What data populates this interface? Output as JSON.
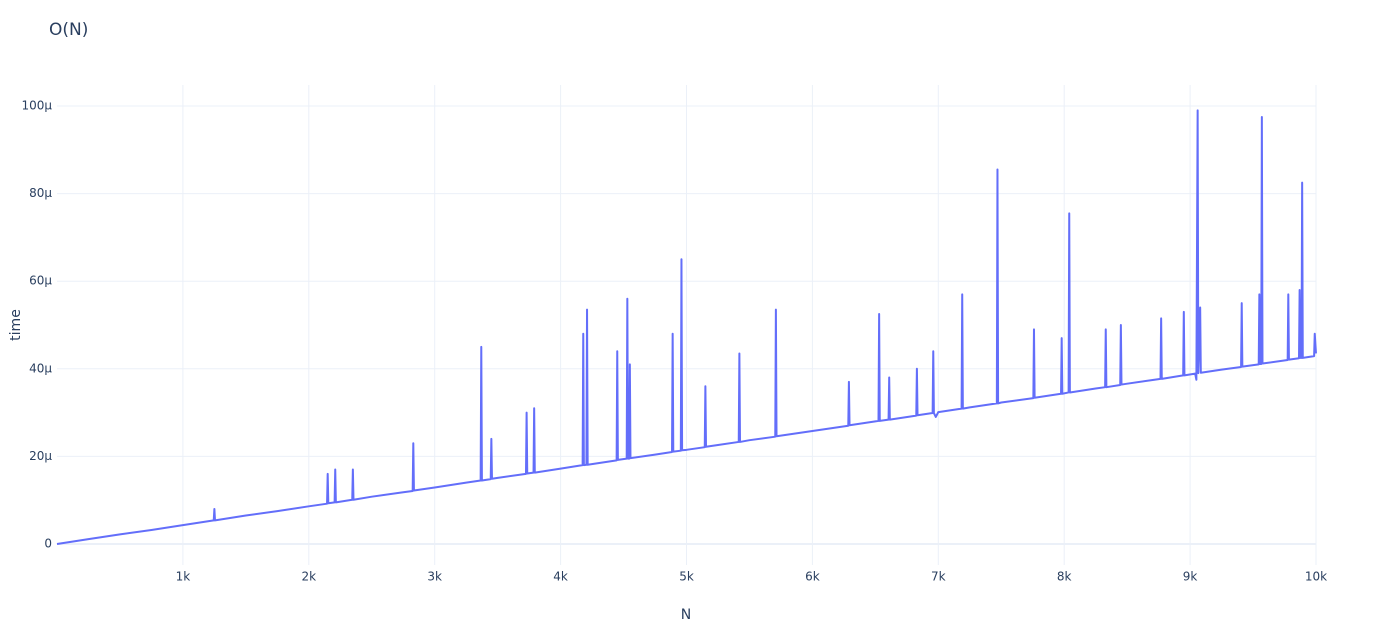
{
  "chart_data": {
    "type": "line",
    "title": "O(N)",
    "x_label": "N",
    "y_label": "time",
    "x": [
      0,
      250,
      500,
      750,
      1000,
      1245,
      1250,
      1255,
      1500,
      1750,
      2000,
      2145,
      2150,
      2155,
      2205,
      2210,
      2215,
      2345,
      2350,
      2355,
      2500,
      2750,
      2825,
      2830,
      2835,
      3000,
      3250,
      3365,
      3370,
      3375,
      3445,
      3450,
      3455,
      3500,
      3725,
      3730,
      3735,
      3785,
      3790,
      3795,
      4000,
      4175,
      4180,
      4185,
      4205,
      4210,
      4215,
      4445,
      4450,
      4455,
      4525,
      4530,
      4535,
      4545,
      4550,
      4555,
      4750,
      4885,
      4890,
      4895,
      4955,
      4960,
      4965,
      5000,
      5145,
      5150,
      5155,
      5250,
      5415,
      5420,
      5425,
      5500,
      5705,
      5710,
      5715,
      6000,
      6285,
      6290,
      6295,
      6500,
      6525,
      6530,
      6535,
      6605,
      6610,
      6615,
      6825,
      6830,
      6835,
      6955,
      6960,
      6965,
      6980,
      7000,
      7185,
      7190,
      7195,
      7250,
      7465,
      7470,
      7475,
      7500,
      7755,
      7760,
      7765,
      7975,
      7980,
      7985,
      8035,
      8040,
      8045,
      8250,
      8325,
      8330,
      8335,
      8445,
      8450,
      8455,
      8500,
      8765,
      8770,
      8775,
      8945,
      8950,
      8955,
      9040,
      9050,
      9060,
      9065,
      9080,
      9085,
      9250,
      9405,
      9410,
      9415,
      9545,
      9550,
      9555,
      9565,
      9570,
      9575,
      9775,
      9780,
      9785,
      9865,
      9870,
      9875,
      9885,
      9890,
      9895,
      9985,
      9990,
      10000
    ],
    "series": [
      {
        "name": "time",
        "color": "#636efa",
        "values": [
          0,
          1.1e-06,
          2.2e-06,
          3.2e-06,
          4.3e-06,
          5.4e-06,
          8e-06,
          5.4e-06,
          6.5e-06,
          7.5e-06,
          8.6e-06,
          9.2e-06,
          1.6e-05,
          9.3e-06,
          9.5e-06,
          1.7e-05,
          9.5e-06,
          1.01e-05,
          1.7e-05,
          1.01e-05,
          1.08e-05,
          1.18e-05,
          1.21e-05,
          2.3e-05,
          1.22e-05,
          1.29e-05,
          1.4e-05,
          1.45e-05,
          4.5e-05,
          1.45e-05,
          1.48e-05,
          2.4e-05,
          1.49e-05,
          1.51e-05,
          1.6e-05,
          3e-05,
          1.61e-05,
          1.63e-05,
          3.1e-05,
          1.63e-05,
          1.72e-05,
          1.8e-05,
          4.8e-05,
          1.8e-05,
          1.81e-05,
          5.35e-05,
          1.81e-05,
          1.91e-05,
          4.4e-05,
          1.92e-05,
          1.95e-05,
          5.6e-05,
          1.95e-05,
          1.95e-05,
          4.1e-05,
          1.96e-05,
          2.04e-05,
          2.1e-05,
          4.8e-05,
          2.11e-05,
          2.13e-05,
          6.5e-05,
          2.14e-05,
          2.15e-05,
          2.21e-05,
          3.6e-05,
          2.22e-05,
          2.26e-05,
          2.33e-05,
          4.35e-05,
          2.33e-05,
          2.37e-05,
          2.45e-05,
          5.35e-05,
          2.46e-05,
          2.58e-05,
          2.7e-05,
          3.7e-05,
          2.71e-05,
          2.8e-05,
          2.81e-05,
          5.25e-05,
          2.81e-05,
          2.84e-05,
          3.8e-05,
          2.84e-05,
          2.93e-05,
          4e-05,
          2.94e-05,
          2.99e-05,
          4.4e-05,
          2.99e-05,
          2.9e-05,
          3.01e-05,
          3.09e-05,
          5.7e-05,
          3.09e-05,
          3.12e-05,
          3.21e-05,
          8.55e-05,
          3.21e-05,
          3.23e-05,
          3.33e-05,
          4.9e-05,
          3.34e-05,
          3.43e-05,
          4.7e-05,
          3.43e-05,
          3.46e-05,
          7.55e-05,
          3.46e-05,
          3.55e-05,
          3.58e-05,
          4.9e-05,
          3.58e-05,
          3.63e-05,
          5e-05,
          3.64e-05,
          3.66e-05,
          3.77e-05,
          5.15e-05,
          3.77e-05,
          3.85e-05,
          5.3e-05,
          3.85e-05,
          3.89e-05,
          3.75e-05,
          9.9e-05,
          3.9e-05,
          5.4e-05,
          3.91e-05,
          3.98e-05,
          4.04e-05,
          5.5e-05,
          4.05e-05,
          4.1e-05,
          5.7e-05,
          4.11e-05,
          4.11e-05,
          9.75e-05,
          4.12e-05,
          4.2e-05,
          5.7e-05,
          4.21e-05,
          4.24e-05,
          5.8e-05,
          4.25e-05,
          4.25e-05,
          8.25e-05,
          4.25e-05,
          4.29e-05,
          4.8e-05,
          4.35e-05
        ]
      }
    ],
    "xlim": [
      0,
      10000
    ],
    "xticks": [
      {
        "value": 1000,
        "label": "1k"
      },
      {
        "value": 2000,
        "label": "2k"
      },
      {
        "value": 3000,
        "label": "3k"
      },
      {
        "value": 4000,
        "label": "4k"
      },
      {
        "value": 5000,
        "label": "5k"
      },
      {
        "value": 6000,
        "label": "6k"
      },
      {
        "value": 7000,
        "label": "7k"
      },
      {
        "value": 8000,
        "label": "8k"
      },
      {
        "value": 9000,
        "label": "9k"
      },
      {
        "value": 10000,
        "label": "10k"
      }
    ],
    "ylim": [
      -4.8e-06,
      0.0001048
    ],
    "yticks": [
      0,
      {
        "value": 2e-05,
        "label": "20µ"
      },
      {
        "value": 4e-05,
        "label": "40µ"
      },
      {
        "value": 6e-05,
        "label": "60µ"
      },
      {
        "value": 8e-05,
        "label": "80µ"
      },
      {
        "value": 0.0001,
        "label": "100µ"
      }
    ],
    "grid": true
  }
}
